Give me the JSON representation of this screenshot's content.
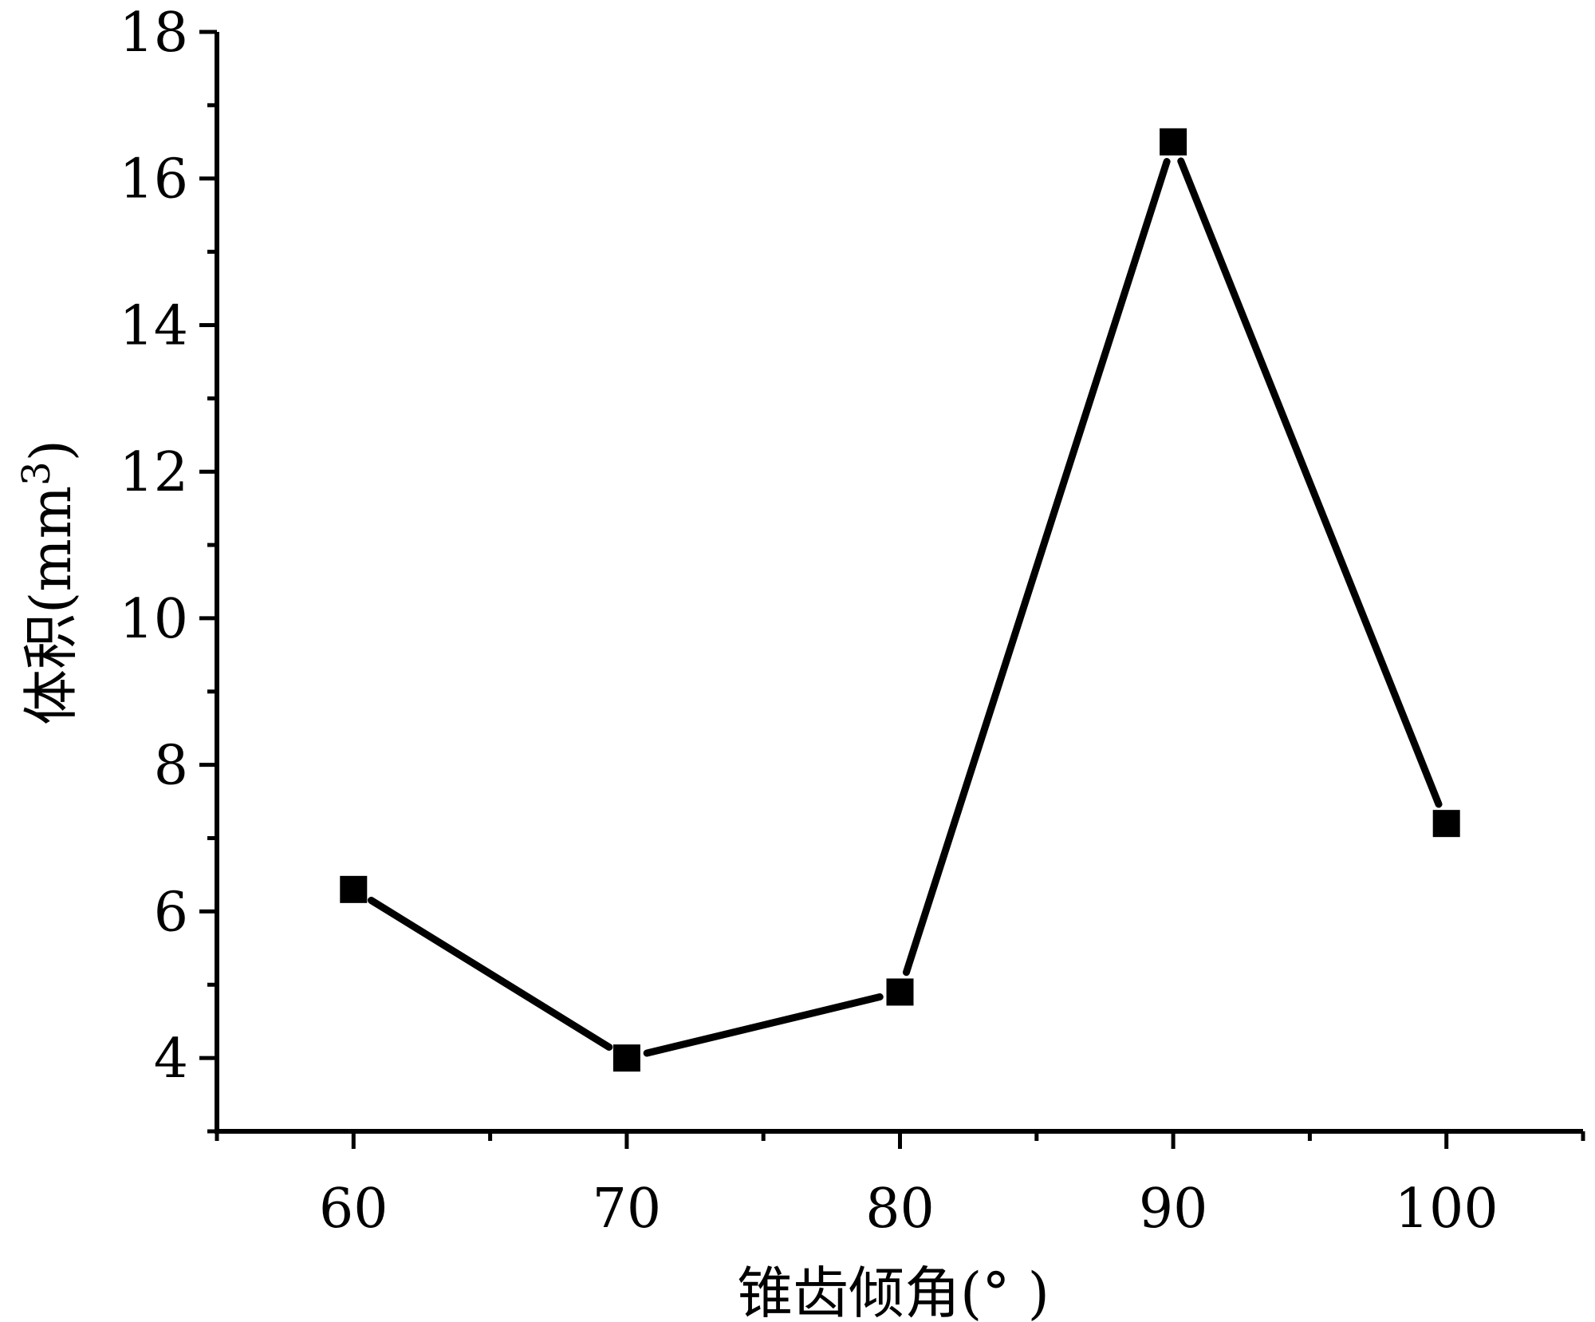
{
  "chart_data": {
    "type": "line",
    "xlabel": "锥齿倾角(°  )",
    "ylabel_main": "体积(mm",
    "ylabel_sup": "3",
    "ylabel_close": ")",
    "x": [
      60,
      70,
      80,
      90,
      100
    ],
    "y": [
      6.3,
      4.0,
      4.9,
      16.5,
      7.2
    ],
    "xlim": [
      55,
      105
    ],
    "ylim": [
      3,
      18
    ],
    "x_ticks": [
      60,
      70,
      80,
      90,
      100
    ],
    "y_ticks": [
      4,
      6,
      8,
      10,
      12,
      14,
      16,
      18
    ],
    "grid": false,
    "legend": "none",
    "marker": "square",
    "line_color": "#000000",
    "marker_color": "#000000"
  }
}
